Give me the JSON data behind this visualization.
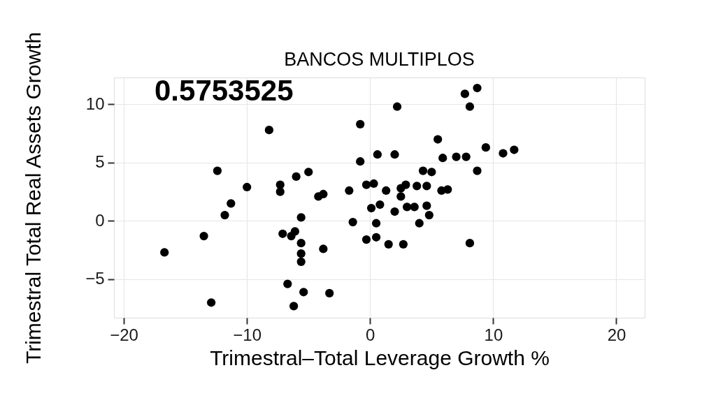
{
  "chart_data": {
    "type": "scatter",
    "title": "BANCOS MULTIPLOS",
    "xlabel": "Trimestral–Total Leverage Growth %",
    "ylabel": "Trimestral Total Real Assets Growth",
    "annotations": [
      "0.5753525"
    ],
    "x": [
      -0.8,
      -8.2,
      -12.4,
      -10.0,
      -11.3,
      -11.8,
      -13.5,
      -16.7,
      -12.9,
      -6.0,
      -5.0,
      -7.3,
      -7.3,
      -4.2,
      -3.8,
      -1.7,
      -0.8,
      -5.6,
      -7.1,
      -6.1,
      -6.4,
      -5.6,
      -5.6,
      -5.6,
      -3.8,
      -1.4,
      -6.7,
      -5.4,
      -3.3,
      -6.2,
      8.7,
      7.7,
      8.1,
      2.2,
      5.5,
      9.4,
      11.7,
      10.8,
      0.6,
      2.0,
      5.9,
      7.0,
      7.8,
      8.7,
      4.3,
      5.0,
      -0.3,
      0.3,
      1.3,
      2.5,
      2.9,
      3.8,
      4.6,
      5.8,
      6.3,
      2.5,
      0.1,
      0.8,
      2.0,
      3.0,
      3.6,
      4.6,
      4.8,
      0.5,
      4.0,
      -0.3,
      0.5,
      1.5,
      2.7,
      8.1
    ],
    "series": [
      {
        "color": "#000000",
        "values": [
          8.3,
          7.8,
          4.3,
          2.9,
          1.5,
          0.5,
          -1.3,
          -2.7,
          -7.0,
          3.8,
          4.2,
          3.1,
          2.5,
          2.1,
          2.3,
          2.6,
          5.1,
          0.3,
          -1.1,
          -0.9,
          -1.3,
          -1.9,
          -2.8,
          -3.5,
          -2.4,
          -0.1,
          -5.4,
          -6.1,
          -6.2,
          -7.3,
          11.4,
          10.9,
          9.8,
          9.8,
          7.0,
          6.3,
          6.1,
          5.8,
          5.7,
          5.7,
          5.4,
          5.5,
          5.5,
          4.3,
          4.3,
          4.2,
          3.1,
          3.2,
          2.6,
          2.8,
          3.1,
          3.0,
          3.0,
          2.6,
          2.7,
          2.1,
          1.1,
          1.4,
          0.8,
          1.2,
          1.2,
          1.3,
          0.5,
          -0.2,
          -0.2,
          -1.6,
          -1.4,
          -2.0,
          -2.0,
          -1.9
        ]
      }
    ],
    "xlim": [
      -20.8,
      22.3
    ],
    "xticks": [
      -20,
      -10,
      0,
      10,
      20
    ],
    "ylim": [
      -8.3,
      12.3
    ],
    "yticks": [
      -5,
      0,
      5,
      10
    ],
    "grid": true,
    "marker": "circle"
  }
}
